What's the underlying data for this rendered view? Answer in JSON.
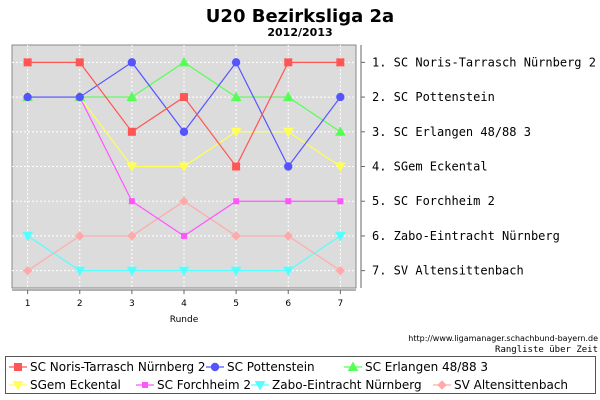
{
  "page": {
    "source_url": "http://www.ligamanager.schachbund-bayern.de",
    "caption": "Rangliste über Zeit"
  },
  "chart_data": {
    "type": "line",
    "title": "U20 Bezirksliga 2a",
    "subtitle": "2012/2013",
    "xlabel": "Runde",
    "ylabel": "",
    "x": [
      1,
      2,
      3,
      4,
      5,
      6,
      7
    ],
    "xlim": [
      0.7,
      7.3
    ],
    "ylim": [
      0.5,
      7.5
    ],
    "y_inverted": true,
    "grid": true,
    "legend_position": "bottom",
    "right_labels": [
      "1. SC Noris-Tarrasch Nürnberg 2",
      "2. SC Pottenstein",
      "3. SC Erlangen 48/88 3",
      "4. SGem Eckental",
      "5. SC Forchheim 2",
      "6. Zabo-Eintracht Nürnberg",
      "7. SV Altensittenbach"
    ],
    "series": [
      {
        "name": "SC Noris-Tarrasch Nürnberg 2",
        "color": "#ff5555",
        "marker": "square",
        "values": [
          1,
          1,
          3,
          2,
          4,
          1,
          1
        ]
      },
      {
        "name": "SC Pottenstein",
        "color": "#5555ff",
        "marker": "circle",
        "values": [
          2,
          2,
          1,
          3,
          1,
          4,
          2
        ]
      },
      {
        "name": "SC Erlangen 48/88 3",
        "color": "#55ff55",
        "marker": "triangle-up",
        "values": [
          2,
          2,
          2,
          1,
          2,
          2,
          3
        ]
      },
      {
        "name": "SGem Eckental",
        "color": "#ffff55",
        "marker": "triangle-down",
        "values": [
          2,
          2,
          4,
          4,
          3,
          3,
          4
        ]
      },
      {
        "name": "SC Forchheim 2",
        "color": "#ff55ff",
        "marker": "square-small",
        "values": [
          2,
          2,
          5,
          6,
          5,
          5,
          5
        ]
      },
      {
        "name": "Zabo-Eintracht Nürnberg",
        "color": "#55ffff",
        "marker": "triangle-down",
        "values": [
          6,
          7,
          7,
          7,
          7,
          7,
          6
        ]
      },
      {
        "name": "SV Altensittenbach",
        "color": "#ffaaaa",
        "marker": "diamond",
        "values": [
          7,
          6,
          6,
          5,
          6,
          6,
          7
        ]
      }
    ]
  }
}
